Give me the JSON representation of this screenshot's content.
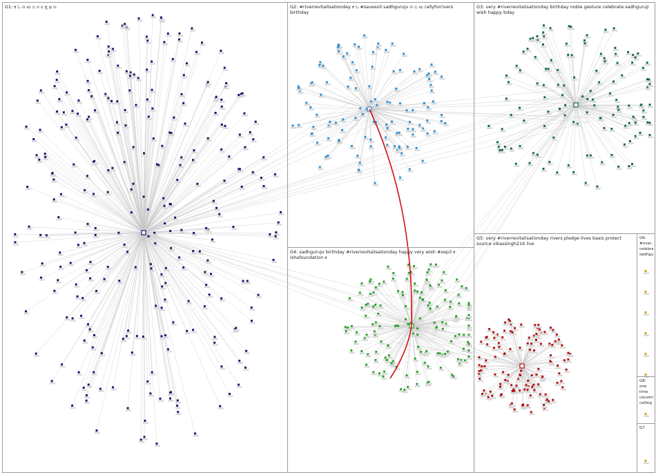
{
  "groups": [
    {
      "label": "G1: ಕ ಓ ಣ ಮ ಬ ಗ ಲ ಕ್ಷ ಥ ಣ"
    },
    {
      "label": "G2: #riverrevitalisationday ಕ ಓ #savesoil sadhgurujv ಣ ಬ ಮ rallyforrivers birthday"
    },
    {
      "label": "G3: very #riverrevitalisationday birthday noble gesture celebrate sadhguruji wish happy bday"
    },
    {
      "label": "G4: sadhgurujv birthday #riverrevitalisationday happy very wish #sep3 ಕ ishafoundation ಕ"
    },
    {
      "label": "G5: very #riverrevitalisationday rivers pledge lives basis protect source vikassingh216 live"
    },
    {
      "label": "G6: #river... celebra... sadhgu..."
    },
    {
      "label": "G8: one time cauvery calling"
    },
    {
      "label": "G7"
    }
  ]
}
